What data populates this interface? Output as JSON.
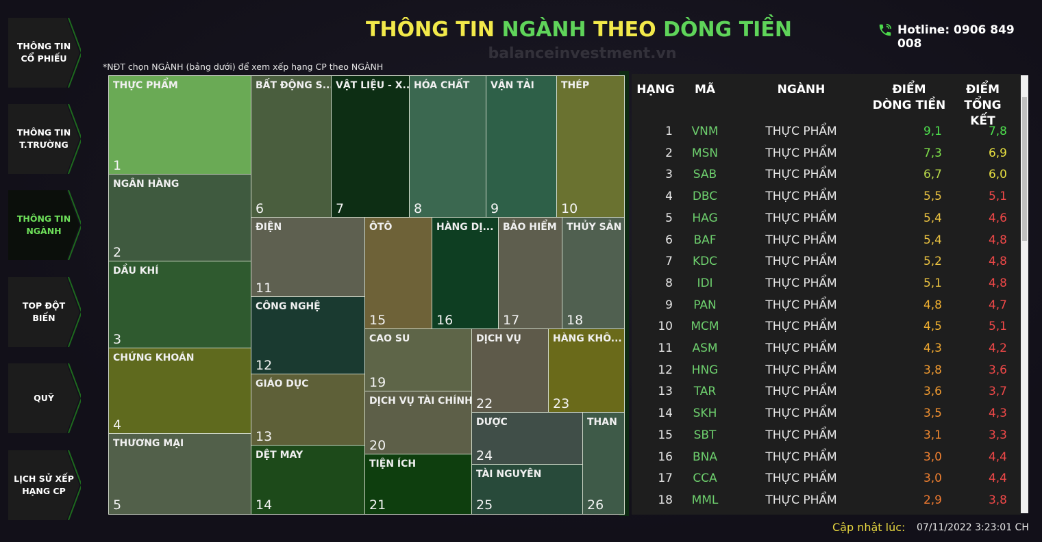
{
  "header": {
    "title_parts": [
      "THÔNG TIN ",
      "NGÀNH",
      " THEO ",
      "DÒNG TIỀN"
    ],
    "hotline": "Hotline: 0906 849 008",
    "watermark": "balanceinvestment.vn"
  },
  "nav": [
    {
      "lines": [
        "THÔNG TIN",
        "CỔ PHIẾU"
      ],
      "active": false
    },
    {
      "lines": [
        "THÔNG TIN",
        "T.TRƯỜNG"
      ],
      "active": false
    },
    {
      "lines": [
        "THÔNG TIN",
        "NGÀNH"
      ],
      "active": true
    },
    {
      "lines": [
        "TOP ĐỘT",
        "BIẾN"
      ],
      "active": false
    },
    {
      "lines": [
        "QUỸ"
      ],
      "active": false
    },
    {
      "lines": [
        "LỊCH SỬ XẾP",
        "HẠNG CP"
      ],
      "active": false
    }
  ],
  "note": "*NĐT chọn NGÀNH (bảng dưới) để xem xếp hạng CP theo NGÀNH",
  "treemap": [
    {
      "label": "THỰC PHẨM",
      "rank": 1,
      "color": "#6aaa55"
    },
    {
      "label": "NGÂN HÀNG",
      "rank": 2,
      "color": "#3f5a3f"
    },
    {
      "label": "DẦU KHÍ",
      "rank": 3,
      "color": "#2f5a2f"
    },
    {
      "label": "CHỨNG KHOÁN",
      "rank": 4,
      "color": "#5f6a1e"
    },
    {
      "label": "THƯƠNG MẠI",
      "rank": 5,
      "color": "#52604a"
    },
    {
      "label": "BẤT ĐỘNG S...",
      "rank": 6,
      "color": "#4a5e3e"
    },
    {
      "label": "VẬT LIỆU - X...",
      "rank": 7,
      "color": "#0d2e14"
    },
    {
      "label": "HÓA CHẤT",
      "rank": 8,
      "color": "#3b6850"
    },
    {
      "label": "VẬN TẢI",
      "rank": 9,
      "color": "#2e6048"
    },
    {
      "label": "THÉP",
      "rank": 10,
      "color": "#6a7230"
    },
    {
      "label": "ĐIỆN",
      "rank": 11,
      "color": "#5e6050"
    },
    {
      "label": "CÔNG NGHỆ",
      "rank": 12,
      "color": "#1a3a30"
    },
    {
      "label": "GIÁO DỤC",
      "rank": 13,
      "color": "#5e6038"
    },
    {
      "label": "DỆT MAY",
      "rank": 14,
      "color": "#1d4a1a"
    },
    {
      "label": "ÔTÔ",
      "rank": 15,
      "color": "#6e6238"
    },
    {
      "label": "HÀNG DỊ...",
      "rank": 16,
      "color": "#0e3e22"
    },
    {
      "label": "BẢO HIỂM",
      "rank": 17,
      "color": "#5e5e4e"
    },
    {
      "label": "THỦY SẢN",
      "rank": 18,
      "color": "#506050"
    },
    {
      "label": "CAO SU",
      "rank": 19,
      "color": "#5e6548"
    },
    {
      "label": "DỊCH VỤ TÀI CHÍNH",
      "rank": 20,
      "color": "#5d5f48"
    },
    {
      "label": "TIỆN ÍCH",
      "rank": 21,
      "color": "#0e3e0e"
    },
    {
      "label": "DỊCH VỤ",
      "rank": 22,
      "color": "#5e5a4a"
    },
    {
      "label": "HÀNG KHÔ...",
      "rank": 23,
      "color": "#6a6a1a"
    },
    {
      "label": "DƯỢC",
      "rank": 24,
      "color": "#404e48"
    },
    {
      "label": "TÀI NGUYÊN",
      "rank": 25,
      "color": "#284a3a"
    },
    {
      "label": "THAN",
      "rank": 26,
      "color": "#3e5a48"
    }
  ],
  "table": {
    "headers": [
      [
        "HẠNG"
      ],
      [
        "MÃ"
      ],
      [
        "NGÀNH"
      ],
      [
        "ĐIỂM",
        "DÒNG TIỀN"
      ],
      [
        "ĐIỂM",
        "TỔNG KẾT"
      ]
    ],
    "rows": [
      [
        "1",
        "VNM",
        "THỰC PHẨM",
        "9,1",
        "7,8"
      ],
      [
        "2",
        "MSN",
        "THỰC PHẨM",
        "7,3",
        "6,9"
      ],
      [
        "3",
        "SAB",
        "THỰC PHẨM",
        "6,7",
        "6,0"
      ],
      [
        "4",
        "DBC",
        "THỰC PHẨM",
        "5,5",
        "5,1"
      ],
      [
        "5",
        "HAG",
        "THỰC PHẨM",
        "5,4",
        "4,6"
      ],
      [
        "6",
        "BAF",
        "THỰC PHẨM",
        "5,4",
        "4,8"
      ],
      [
        "7",
        "KDC",
        "THỰC PHẨM",
        "5,2",
        "4,8"
      ],
      [
        "8",
        "IDI",
        "THỰC PHẨM",
        "5,1",
        "4,8"
      ],
      [
        "9",
        "PAN",
        "THỰC PHẨM",
        "4,8",
        "4,7"
      ],
      [
        "10",
        "MCM",
        "THỰC PHẨM",
        "4,5",
        "5,1"
      ],
      [
        "11",
        "ASM",
        "THỰC PHẨM",
        "4,3",
        "4,2"
      ],
      [
        "12",
        "HNG",
        "THỰC PHẨM",
        "3,8",
        "3,6"
      ],
      [
        "13",
        "TAR",
        "THỰC PHẨM",
        "3,6",
        "3,7"
      ],
      [
        "14",
        "SKH",
        "THỰC PHẨM",
        "3,5",
        "4,3"
      ],
      [
        "15",
        "SBT",
        "THỰC PHẨM",
        "3,1",
        "3,3"
      ],
      [
        "16",
        "BNA",
        "THỰC PHẨM",
        "3,0",
        "4,4"
      ],
      [
        "17",
        "CCA",
        "THỰC PHẨM",
        "3,0",
        "4,4"
      ],
      [
        "18",
        "MML",
        "THỰC PHẨM",
        "2,9",
        "3,8"
      ]
    ],
    "score_colors": [
      [
        "#4ee04e",
        "#4ee04e"
      ],
      [
        "#7ee04a",
        "#e8e040"
      ],
      [
        "#b8d84a",
        "#e8e040"
      ],
      [
        "#e8c040",
        "#f04848"
      ],
      [
        "#e8c040",
        "#f04848"
      ],
      [
        "#e8c040",
        "#f04848"
      ],
      [
        "#e8c040",
        "#f04848"
      ],
      [
        "#e8c040",
        "#f04848"
      ],
      [
        "#f0b030",
        "#f04848"
      ],
      [
        "#f0b030",
        "#f04848"
      ],
      [
        "#f0a830",
        "#f04848"
      ],
      [
        "#f09a30",
        "#f04848"
      ],
      [
        "#f09a30",
        "#f04848"
      ],
      [
        "#f09030",
        "#f04848"
      ],
      [
        "#f08830",
        "#f04848"
      ],
      [
        "#f08030",
        "#f04848"
      ],
      [
        "#f08030",
        "#f04848"
      ],
      [
        "#f07a30",
        "#f04848"
      ]
    ]
  },
  "footer": {
    "label": "Cập nhật lúc:",
    "timestamp": "07/11/2022 3:23:01 CH"
  }
}
